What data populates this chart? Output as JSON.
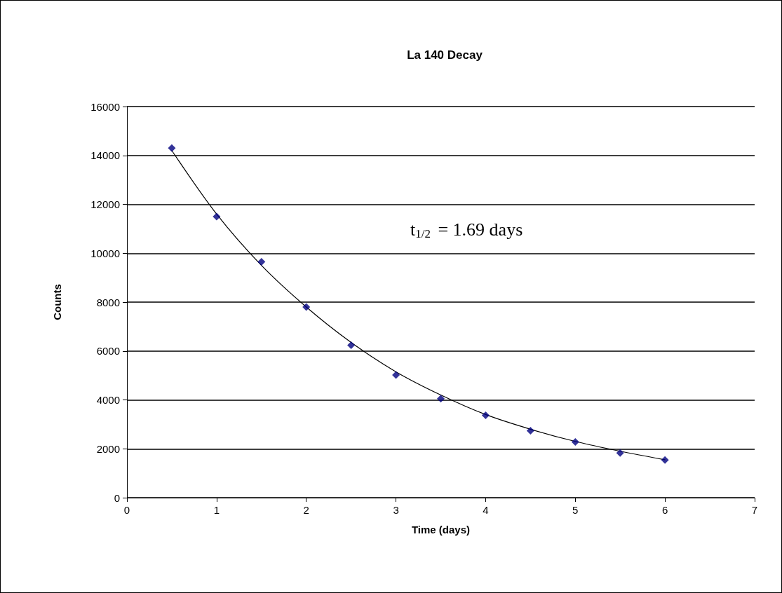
{
  "chart_data": {
    "type": "scatter",
    "title": "La 140 Decay",
    "xlabel": "Time (days)",
    "ylabel": "Counts",
    "annotations": [
      "t$_{1/2}$ = 1.69 days"
    ],
    "xlim": [
      0,
      7
    ],
    "xticks": [
      0,
      1,
      2,
      3,
      4,
      5,
      6,
      7
    ],
    "ylim": [
      0,
      16000
    ],
    "yticks": [
      0,
      2000,
      4000,
      6000,
      8000,
      10000,
      12000,
      14000,
      16000
    ],
    "grid": "y",
    "series": [
      {
        "color": "#000080",
        "marker": "diamond",
        "x": [
          0.5,
          1,
          1.5,
          2,
          2.5,
          3,
          3.5,
          4,
          4.5,
          5,
          5.5,
          6
        ],
        "values": [
          14300,
          11500,
          9650,
          7800,
          6240,
          5020,
          4050,
          3370,
          2740,
          2280,
          1830,
          1540
        ]
      },
      {
        "type": "line",
        "color": "#000000",
        "marker": "none",
        "line_style": "solid",
        "x": [
          0.5,
          1,
          1.5,
          2,
          2.5,
          3,
          3.5,
          4,
          4.5,
          5,
          5.5,
          6
        ],
        "values": [
          14200,
          11600,
          9500,
          7800,
          6350,
          5150,
          4200,
          3400,
          2800,
          2300,
          1900,
          1550
        ]
      }
    ]
  }
}
